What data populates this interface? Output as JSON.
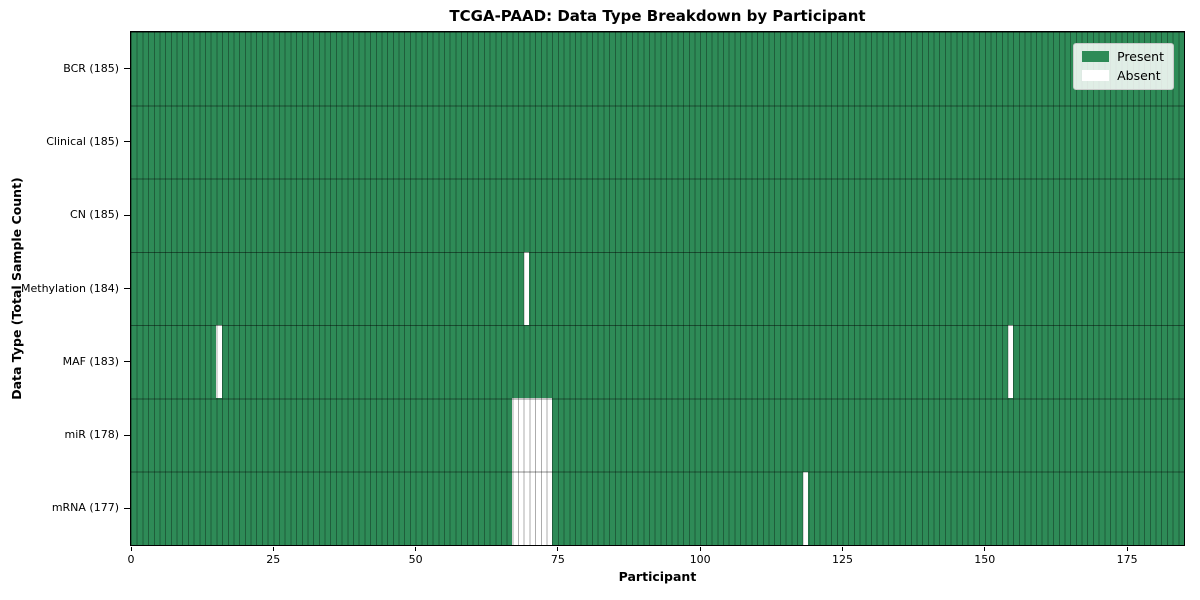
{
  "figure": {
    "background": "#ffffff"
  },
  "chart_data": {
    "type": "heatmap",
    "title": "TCGA-PAAD: Data Type Breakdown by Participant",
    "xlabel": "Participant",
    "ylabel": "Data Type (Total Sample Count)",
    "n_participants": 185,
    "x_range": [
      0,
      185
    ],
    "x_ticks": [
      0,
      25,
      50,
      75,
      100,
      125,
      150,
      175
    ],
    "legend_position": "upper right",
    "legend": [
      {
        "label": "Present",
        "color": "#2e8b57"
      },
      {
        "label": "Absent",
        "color": "#ffffff"
      }
    ],
    "colors": {
      "present": "#2e8b57",
      "absent": "#ffffff",
      "column_line": "#00000052",
      "row_line": "#00000073",
      "plot_border": "#000000",
      "legend_bg": "#ffffffd9",
      "legend_border": "#c9c9c9"
    },
    "rows": [
      {
        "label": "BCR (185)",
        "data_type": "BCR",
        "present_count": 185,
        "absent_participants": []
      },
      {
        "label": "Clinical (185)",
        "data_type": "Clinical",
        "present_count": 185,
        "absent_participants": []
      },
      {
        "label": "CN (185)",
        "data_type": "CN",
        "present_count": 185,
        "absent_participants": []
      },
      {
        "label": "Methylation (184)",
        "data_type": "Methylation",
        "present_count": 184,
        "absent_participants": [
          69
        ]
      },
      {
        "label": "MAF (183)",
        "data_type": "MAF",
        "present_count": 183,
        "absent_participants": [
          15,
          154
        ]
      },
      {
        "label": "miR (178)",
        "data_type": "miR",
        "present_count": 178,
        "absent_participants": [
          67,
          68,
          69,
          70,
          71,
          72,
          73
        ]
      },
      {
        "label": "mRNA (177)",
        "data_type": "mRNA",
        "present_count": 177,
        "absent_participants": [
          67,
          68,
          69,
          70,
          71,
          72,
          73,
          118
        ]
      }
    ]
  }
}
